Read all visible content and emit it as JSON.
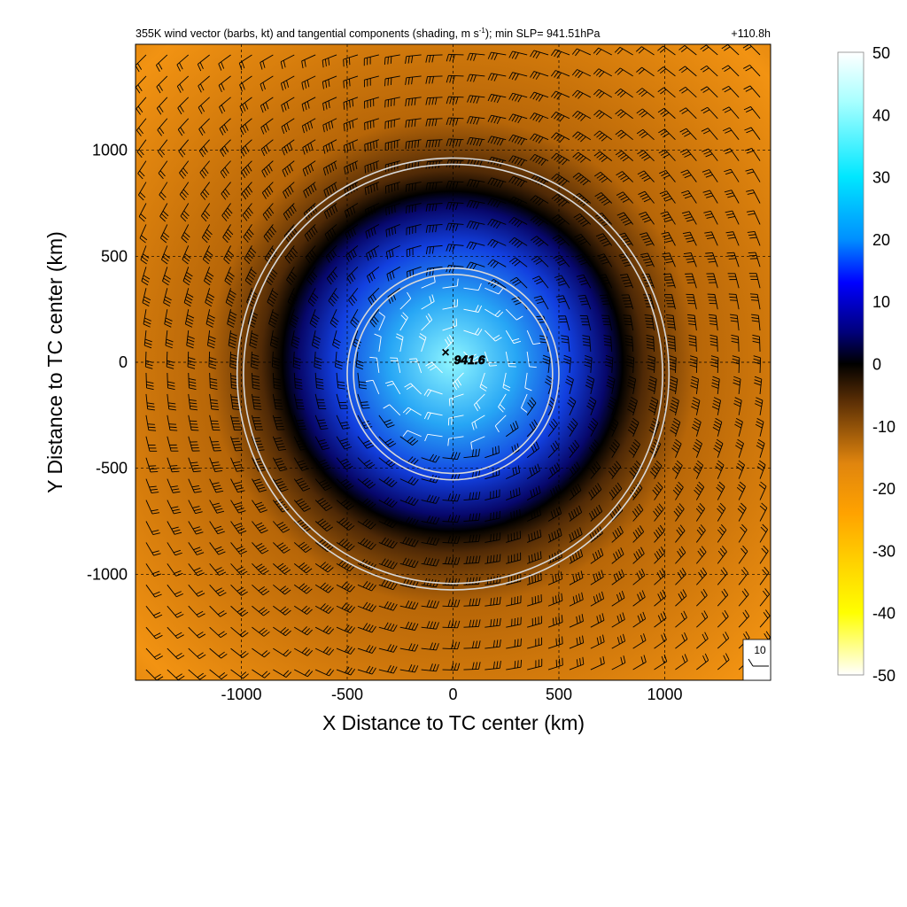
{
  "chart_data": {
    "type": "heatmap",
    "title": "355K wind vector (barbs, kt) and tangential components (shading, m s",
    "title_sup": "-1",
    "title_tail": "); min SLP= 941.51hPa",
    "forecast_hour": "+110.8h",
    "xlabel": "X Distance to TC center (km)",
    "ylabel": "Y Distance to TC center (km)",
    "xlim": [
      -1500,
      1500
    ],
    "ylim": [
      -1500,
      1500
    ],
    "x_ticks": [
      -1000,
      -500,
      0,
      500,
      1000
    ],
    "y_ticks": [
      -1000,
      -500,
      0,
      500,
      1000
    ],
    "grid": "dashed",
    "colorbar": {
      "ticks": [
        50,
        40,
        30,
        20,
        10,
        0,
        -10,
        -20,
        -30,
        -40,
        -50
      ],
      "range": [
        -50,
        50
      ],
      "colors": [
        "#ffffff",
        "#fffaaa",
        "#ffff00",
        "#ffd200",
        "#ffa200",
        "#e0850e",
        "#5a2e05",
        "#000000",
        "#00007a",
        "#0000ff",
        "#00aaff",
        "#00ffff",
        "#ffffff"
      ]
    },
    "center_label": "941.6",
    "center_marker": "×",
    "reference_barb": "10",
    "rings_radius_km": [
      470,
      500,
      990,
      1020
    ],
    "field": {
      "inner_max": 33,
      "inner_radius_km": 420,
      "outer_min": -22,
      "ring_peak_radius_km": 1000
    }
  }
}
